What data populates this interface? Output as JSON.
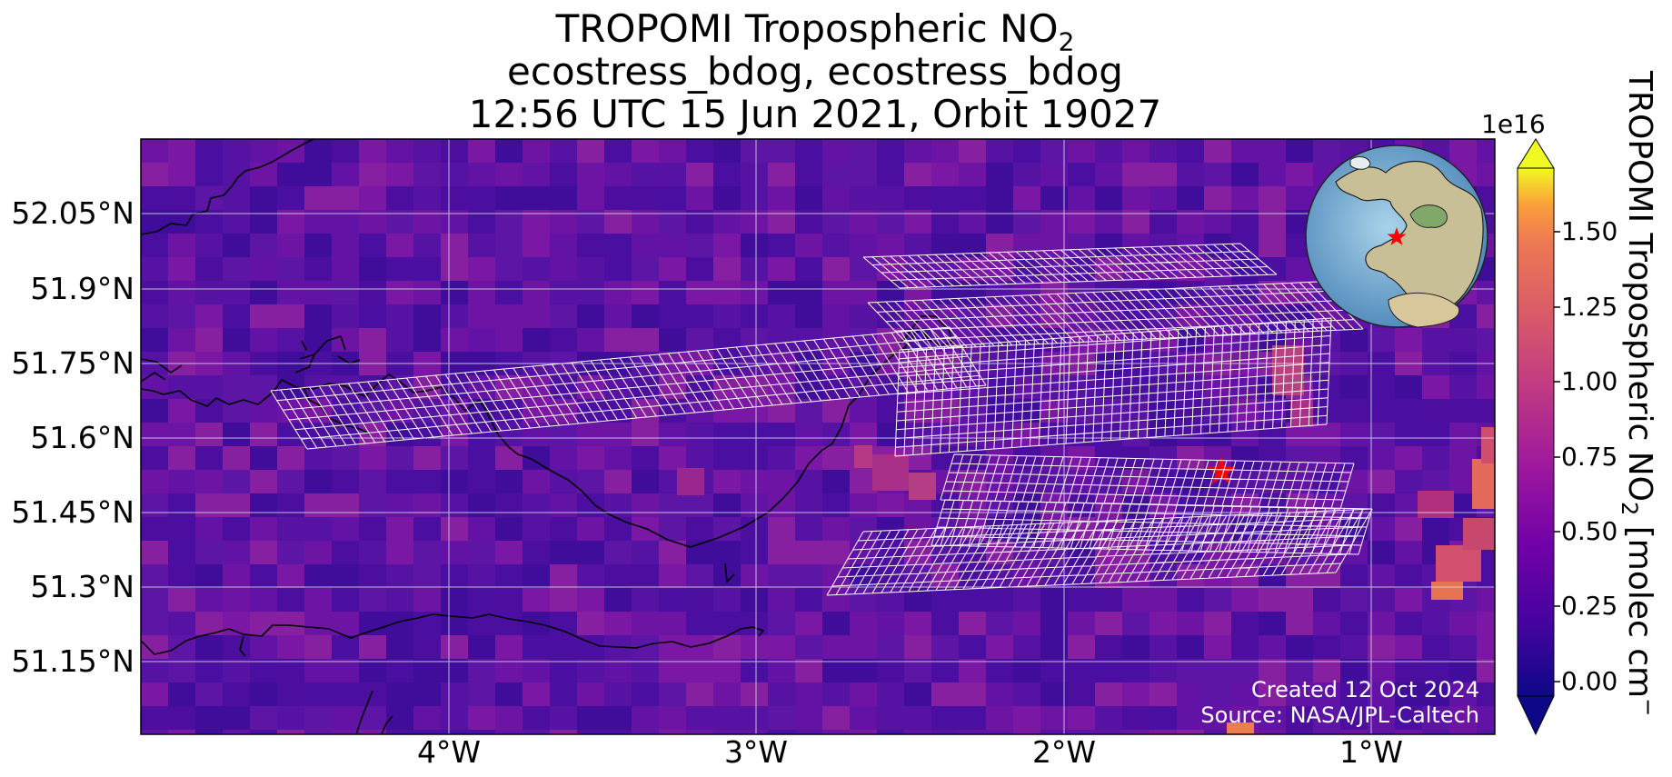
{
  "title": {
    "line1_prefix": "TROPOMI Tropospheric NO",
    "line1_sub": "2",
    "line2": "ecostress_bdog, ecostress_bdog",
    "line3": "12:56 UTC 15 Jun 2021, Orbit 19027"
  },
  "map": {
    "lat_labels": [
      "52.05°N",
      "51.9°N",
      "51.75°N",
      "51.6°N",
      "51.45°N",
      "51.3°N",
      "51.15°N"
    ],
    "lon_labels": [
      "4°W",
      "3°W",
      "2°W",
      "1°W"
    ],
    "target_marker": "red-star",
    "inset": "globe-europe-locator",
    "credit_line1": "Created 12 Oct 2024",
    "credit_line2": "Source: NASA/JPL-Caltech"
  },
  "colorbar": {
    "colormap": "plasma",
    "exponent_label": "1e16",
    "tick_labels": [
      "1.50",
      "1.25",
      "1.00",
      "0.75",
      "0.50",
      "0.25",
      "0.00"
    ],
    "label_prefix": "TROPOMI Tropospheric NO",
    "label_sub": "2",
    "label_suffix": " [molec cm",
    "label_sup": "−"
  },
  "colors": {
    "background_field": "#5a1ca4",
    "footprint_grid": "#ffffff",
    "coastline": "#000000",
    "target_star": "#ff0000",
    "gridline": "#d8d8e8"
  }
}
